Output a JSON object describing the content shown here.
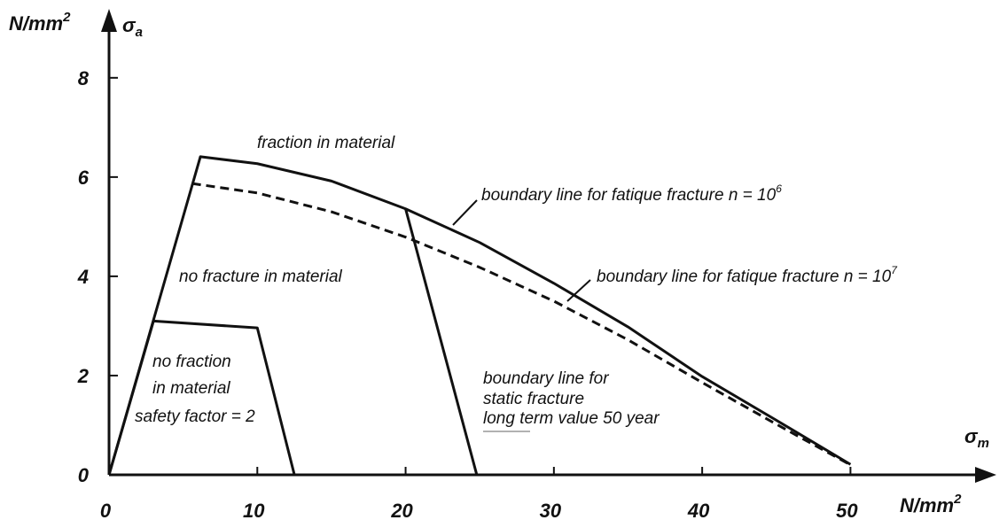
{
  "chart_data": {
    "type": "line",
    "xlim": [
      0,
      59.6
    ],
    "ylim": [
      0,
      9.3
    ],
    "xticks": [
      0,
      10,
      20,
      30,
      40,
      50
    ],
    "yticks": [
      0,
      2,
      4,
      6,
      8
    ],
    "y_unit": "N/mm",
    "y_unit_sup": "2",
    "y_symbol": "σ",
    "y_symbol_sub": "a",
    "x_unit": "N/mm",
    "x_unit_sup": "2",
    "x_symbol": "σ",
    "x_symbol_sub": "m",
    "series": [
      {
        "color": "#111",
        "dash": false,
        "x": [
          0,
          6.16,
          10,
          15,
          20,
          25,
          30,
          35,
          40,
          45,
          50
        ],
        "values": [
          0,
          6.41,
          6.27,
          5.92,
          5.36,
          4.68,
          3.86,
          2.98,
          1.98,
          1.1,
          0.21
        ]
      },
      {
        "color": "#111",
        "dash": true,
        "x": [
          5.6,
          10,
          15,
          20,
          25,
          30,
          35,
          40,
          45,
          50
        ],
        "values": [
          5.87,
          5.68,
          5.3,
          4.79,
          4.18,
          3.5,
          2.72,
          1.86,
          1.02,
          0.2
        ]
      },
      {
        "color": "#111",
        "dash": false,
        "x": [
          20,
          24.8
        ],
        "values": [
          5.36,
          0
        ]
      },
      {
        "color": "#111",
        "dash": false,
        "x": [
          0,
          3.0,
          10,
          12.5
        ],
        "values": [
          0,
          3.1,
          2.96,
          0
        ]
      }
    ],
    "annotations": {
      "fraction": "fraction in material",
      "no_fracture": "no fracture in material",
      "no_fraction_1": "no fraction",
      "no_fraction_2": "in material",
      "safety": "safety factor = 2",
      "static_1": "boundary line for",
      "static_2": "static fracture",
      "static_3": "long term value 50 year",
      "fatigue6": "boundary line for fatique fracture n = 10",
      "fatigue6_sup": "6",
      "fatigue7": "boundary line for fatique fracture n = 10",
      "fatigue7_sup": "7"
    }
  }
}
